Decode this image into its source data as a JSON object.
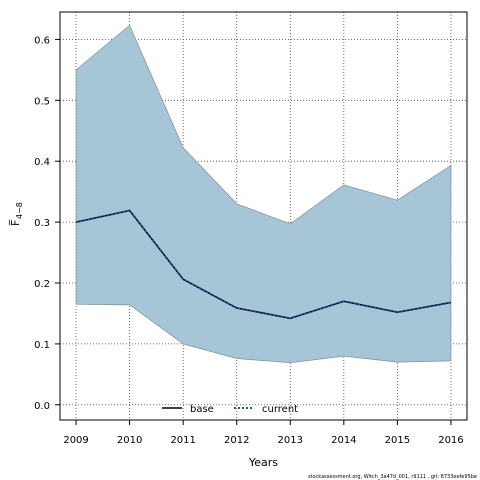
{
  "chart_data": {
    "type": "line",
    "xlabel": "Years",
    "ylabel": "F̅",
    "ylabel_sub": "4−8",
    "x": [
      2009,
      2010,
      2011,
      2012,
      2013,
      2014,
      2015,
      2016
    ],
    "xlim": [
      2008.7,
      2016.3
    ],
    "ylim": [
      -0.025,
      0.645
    ],
    "yticks": [
      0.0,
      0.1,
      0.2,
      0.3,
      0.4,
      0.5,
      0.6
    ],
    "ytick_labels": [
      "0.0",
      "0.1",
      "0.2",
      "0.3",
      "0.4",
      "0.5",
      "0.6"
    ],
    "xtick_labels": [
      "2009",
      "2010",
      "2011",
      "2012",
      "2013",
      "2014",
      "2015",
      "2016"
    ],
    "grid": true,
    "band": {
      "lower": [
        0.165,
        0.164,
        0.1,
        0.076,
        0.069,
        0.08,
        0.07,
        0.072
      ],
      "upper": [
        0.55,
        0.623,
        0.422,
        0.33,
        0.297,
        0.361,
        0.336,
        0.393
      ],
      "color": "#a6c6d8"
    },
    "series": [
      {
        "name": "base",
        "values": [
          0.3,
          0.319,
          0.206,
          0.159,
          0.142,
          0.17,
          0.152,
          0.168
        ],
        "color": "#000000",
        "style": "solid"
      },
      {
        "name": "current",
        "values": [
          0.3,
          0.319,
          0.206,
          0.159,
          0.142,
          0.17,
          0.152,
          0.168
        ],
        "color": "#1a5d9c",
        "style": "dotted"
      }
    ],
    "legend": {
      "position": "bottom-center",
      "entries": [
        "base",
        "current"
      ]
    }
  },
  "footer": "stockassessment.org, Witch_3a47d_001, r9111 , git: 8733eefe95be"
}
